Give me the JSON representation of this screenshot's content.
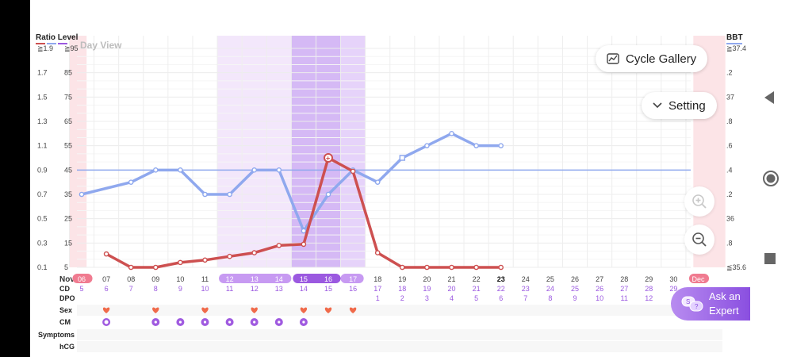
{
  "header": {
    "left_title": "Ratio Level",
    "right_title": "BBT",
    "day_view": "Day View",
    "month_start": "Nov",
    "month_end": "Dec"
  },
  "ratio_axis": [
    "≧1.9",
    "1.7",
    "1.5",
    "1.3",
    "1.1",
    "0.9",
    "0.7",
    "0.5",
    "0.3",
    "0.1"
  ],
  "level_axis": [
    "≧95",
    "85",
    "75",
    "65",
    "55",
    "45",
    "35",
    "25",
    "15",
    "5"
  ],
  "bbt_axis": [
    "≧37.4",
    ".2",
    "37",
    ".8",
    ".6",
    ".4",
    ".2",
    "36",
    ".8",
    "≦35.6"
  ],
  "row_labels": {
    "cd": "CD",
    "dpo": "DPO",
    "sex": "Sex",
    "cm": "CM",
    "symptoms": "Symptoms",
    "hcg": "hCG"
  },
  "dates": [
    "06",
    "07",
    "08",
    "09",
    "10",
    "11",
    "12",
    "13",
    "14",
    "15",
    "16",
    "17",
    "18",
    "19",
    "20",
    "21",
    "22",
    "23",
    "24",
    "25",
    "26",
    "27",
    "28",
    "29",
    "30",
    "Dec"
  ],
  "cd": [
    "5",
    "6",
    "7",
    "8",
    "9",
    "10",
    "11",
    "12",
    "13",
    "14",
    "15",
    "16",
    "17",
    "18",
    "19",
    "20",
    "21",
    "22",
    "23",
    "24",
    "25",
    "26",
    "27",
    "28",
    "29",
    ""
  ],
  "dpo": [
    "",
    "",
    "",
    "",
    "",
    "",
    "",
    "",
    "",
    "",
    "",
    "",
    "1",
    "2",
    "3",
    "4",
    "5",
    "6",
    "7",
    "8",
    "9",
    "10",
    "11",
    "12",
    "",
    ""
  ],
  "sex_days": [
    1,
    3,
    5,
    7,
    9,
    10,
    11
  ],
  "cm_days": [
    1,
    3,
    4,
    5,
    6,
    7,
    8,
    9
  ],
  "buttons": {
    "cycle_gallery": "Cycle Gallery",
    "setting": "Setting",
    "ask_line1": "Ask an",
    "ask_line2": "Expert"
  },
  "colors": {
    "bbt_line": "#8fa8ee",
    "lh_line": "#cd5050",
    "fertile_light": "#f3e7fb",
    "fertile_mid": "#e6d3fa",
    "fertile_dark": "#d5b9f5",
    "period": "#fce4e7",
    "accent": "#9b59e0"
  },
  "chart_data": {
    "type": "line",
    "x": [
      "Nov 06",
      "Nov 07",
      "Nov 08",
      "Nov 09",
      "Nov 10",
      "Nov 11",
      "Nov 12",
      "Nov 13",
      "Nov 14",
      "Nov 15",
      "Nov 16",
      "Nov 17",
      "Nov 18",
      "Nov 19",
      "Nov 20",
      "Nov 21",
      "Nov 22",
      "Nov 23"
    ],
    "series": [
      {
        "name": "BBT",
        "axis": "right",
        "values": [
          36.2,
          null,
          36.3,
          36.4,
          36.4,
          36.2,
          36.2,
          36.4,
          36.4,
          35.9,
          36.2,
          36.4,
          36.3,
          36.5,
          36.6,
          36.7,
          36.6,
          36.6
        ]
      },
      {
        "name": "Ratio Level",
        "axis": "left",
        "values": [
          null,
          0.21,
          0.1,
          0.1,
          0.14,
          0.16,
          0.19,
          0.22,
          0.28,
          0.29,
          1.0,
          0.89,
          0.22,
          0.1,
          0.1,
          0.1,
          0.1,
          0.1
        ]
      }
    ],
    "reference_line_level": 45,
    "ylim_left": [
      0.1,
      1.9
    ],
    "ylim_right": [
      35.6,
      37.4
    ],
    "grid": true
  }
}
